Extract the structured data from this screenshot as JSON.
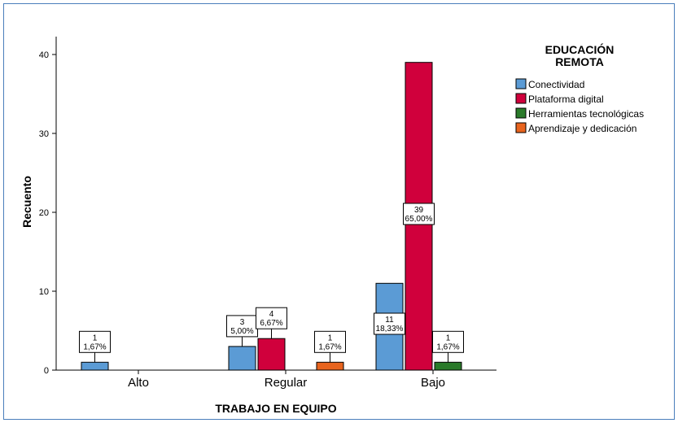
{
  "chart_data": {
    "type": "bar",
    "xlabel": "TRABAJO EN EQUIPO",
    "ylabel": "Recuento",
    "ylim": [
      0,
      45
    ],
    "yticks": [
      0,
      10,
      20,
      30,
      40
    ],
    "categories": [
      "Alto",
      "Regular",
      "Bajo"
    ],
    "legend": {
      "title_line1": "EDUCACIÓN",
      "title_line2": "REMOTA",
      "placement": "right"
    },
    "series": [
      {
        "name": "Conectividad",
        "color": "#5b9bd5",
        "values": [
          1,
          3,
          11
        ],
        "labels": [
          "1,67%",
          "5,00%",
          "18,33%"
        ]
      },
      {
        "name": "Plataforma digital",
        "color": "#d0003c",
        "values": [
          0,
          4,
          39
        ],
        "labels": [
          "",
          "6,67%",
          "65,00%"
        ]
      },
      {
        "name": "Herramientas tecnológicas",
        "color": "#2a7a2a",
        "values": [
          0,
          0,
          1
        ],
        "labels": [
          "",
          "",
          "1,67%"
        ]
      },
      {
        "name": "Aprendizaje y dedicación",
        "color": "#e8641e",
        "values": [
          0,
          1,
          0
        ],
        "labels": [
          "",
          "1,67%",
          ""
        ]
      }
    ]
  }
}
